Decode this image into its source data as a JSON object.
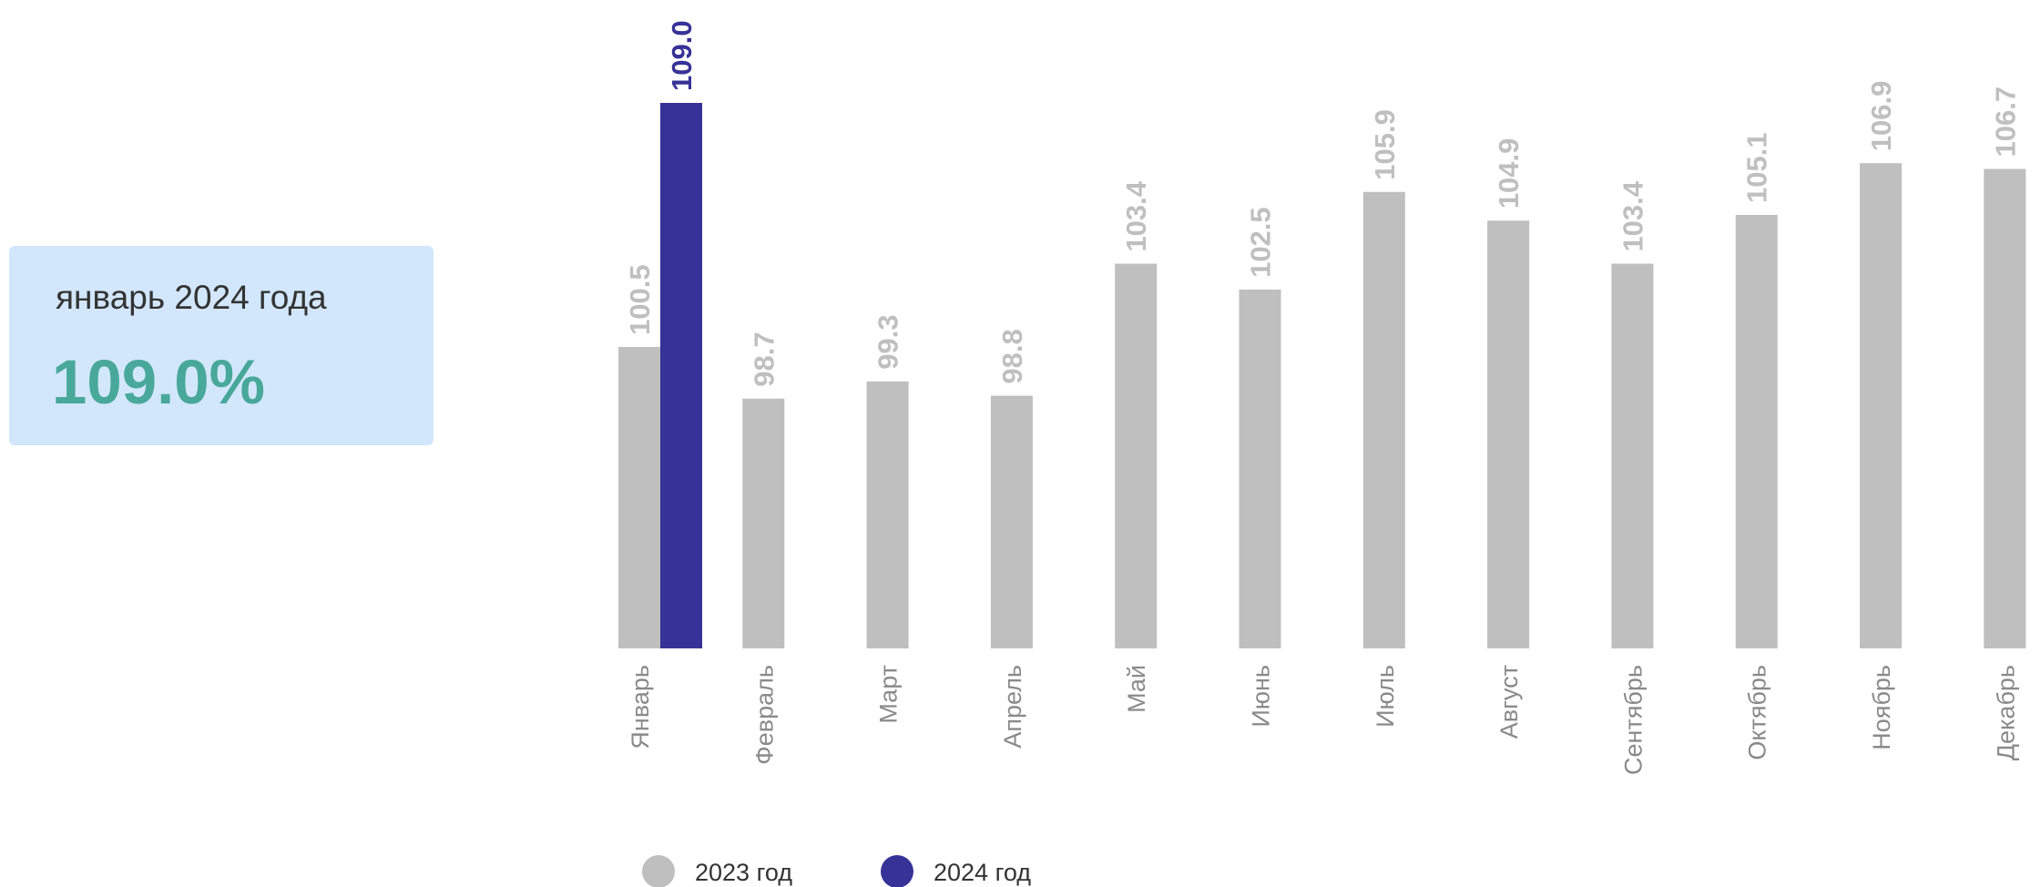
{
  "card": {
    "label": "январь 2024 года",
    "value": "109.0%"
  },
  "colors": {
    "series_2023": "#bfbfbf",
    "series_2024": "#363297",
    "card_bg": "#d2e7fc",
    "card_value": "#48a89a"
  },
  "chart_data": {
    "type": "bar",
    "categories": [
      "Январь",
      "Февраль",
      "Март",
      "Апрель",
      "Май",
      "Июнь",
      "Июль",
      "Август",
      "Сентябрь",
      "Октябрь",
      "Ноябрь",
      "Декабрь"
    ],
    "series": [
      {
        "name": "2023 год",
        "color": "#bfbfbf",
        "values": [
          100.5,
          98.7,
          99.3,
          98.8,
          103.4,
          102.5,
          105.9,
          104.9,
          103.4,
          105.1,
          106.9,
          106.7
        ]
      },
      {
        "name": "2024 год",
        "color": "#363297",
        "values": [
          109.0,
          null,
          null,
          null,
          null,
          null,
          null,
          null,
          null,
          null,
          null,
          null
        ]
      }
    ],
    "title": "",
    "xlabel": "",
    "ylabel": "",
    "ylim": [
      90,
      109
    ],
    "grid": false,
    "legend_position": "bottom-left"
  }
}
